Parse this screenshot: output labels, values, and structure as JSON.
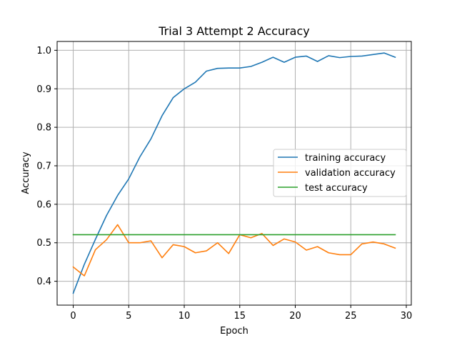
{
  "chart_data": {
    "type": "line",
    "title": "Trial 3 Attempt 2 Accuracy",
    "xlabel": "Epoch",
    "ylabel": "Accuracy",
    "xlim": [
      -1.45,
      30.45
    ],
    "ylim": [
      0.338,
      1.023
    ],
    "x_ticks": [
      0,
      5,
      10,
      15,
      20,
      25,
      30
    ],
    "y_ticks": [
      0.4,
      0.5,
      0.6,
      0.7,
      0.8,
      0.9,
      1.0
    ],
    "y_tick_labels": [
      "0.4",
      "0.5",
      "0.6",
      "0.7",
      "0.8",
      "0.9",
      "1.0"
    ],
    "grid": true,
    "legend_position": "center-right",
    "x": [
      0,
      1,
      2,
      3,
      4,
      5,
      6,
      7,
      8,
      9,
      10,
      11,
      12,
      13,
      14,
      15,
      16,
      17,
      18,
      19,
      20,
      21,
      22,
      23,
      24,
      25,
      26,
      27,
      28,
      29
    ],
    "series": [
      {
        "name": "training accuracy",
        "color": "#1f77b4",
        "values": [
          0.369,
          0.444,
          0.509,
          0.571,
          0.623,
          0.666,
          0.723,
          0.77,
          0.83,
          0.877,
          0.9,
          0.917,
          0.946,
          0.953,
          0.954,
          0.954,
          0.958,
          0.969,
          0.982,
          0.969,
          0.982,
          0.985,
          0.971,
          0.986,
          0.981,
          0.984,
          0.985,
          0.989,
          0.993,
          0.982
        ]
      },
      {
        "name": "validation accuracy",
        "color": "#ff7f0e",
        "values": [
          0.437,
          0.414,
          0.482,
          0.508,
          0.547,
          0.5,
          0.5,
          0.505,
          0.461,
          0.495,
          0.49,
          0.474,
          0.479,
          0.5,
          0.472,
          0.521,
          0.513,
          0.524,
          0.493,
          0.51,
          0.502,
          0.481,
          0.49,
          0.474,
          0.469,
          0.469,
          0.497,
          0.502,
          0.497,
          0.486
        ]
      },
      {
        "name": "test accuracy",
        "color": "#2ca02c",
        "values": [
          0.521,
          0.521,
          0.521,
          0.521,
          0.521,
          0.521,
          0.521,
          0.521,
          0.521,
          0.521,
          0.521,
          0.521,
          0.521,
          0.521,
          0.521,
          0.521,
          0.521,
          0.521,
          0.521,
          0.521,
          0.521,
          0.521,
          0.521,
          0.521,
          0.521,
          0.521,
          0.521,
          0.521,
          0.521,
          0.521
        ]
      }
    ]
  }
}
